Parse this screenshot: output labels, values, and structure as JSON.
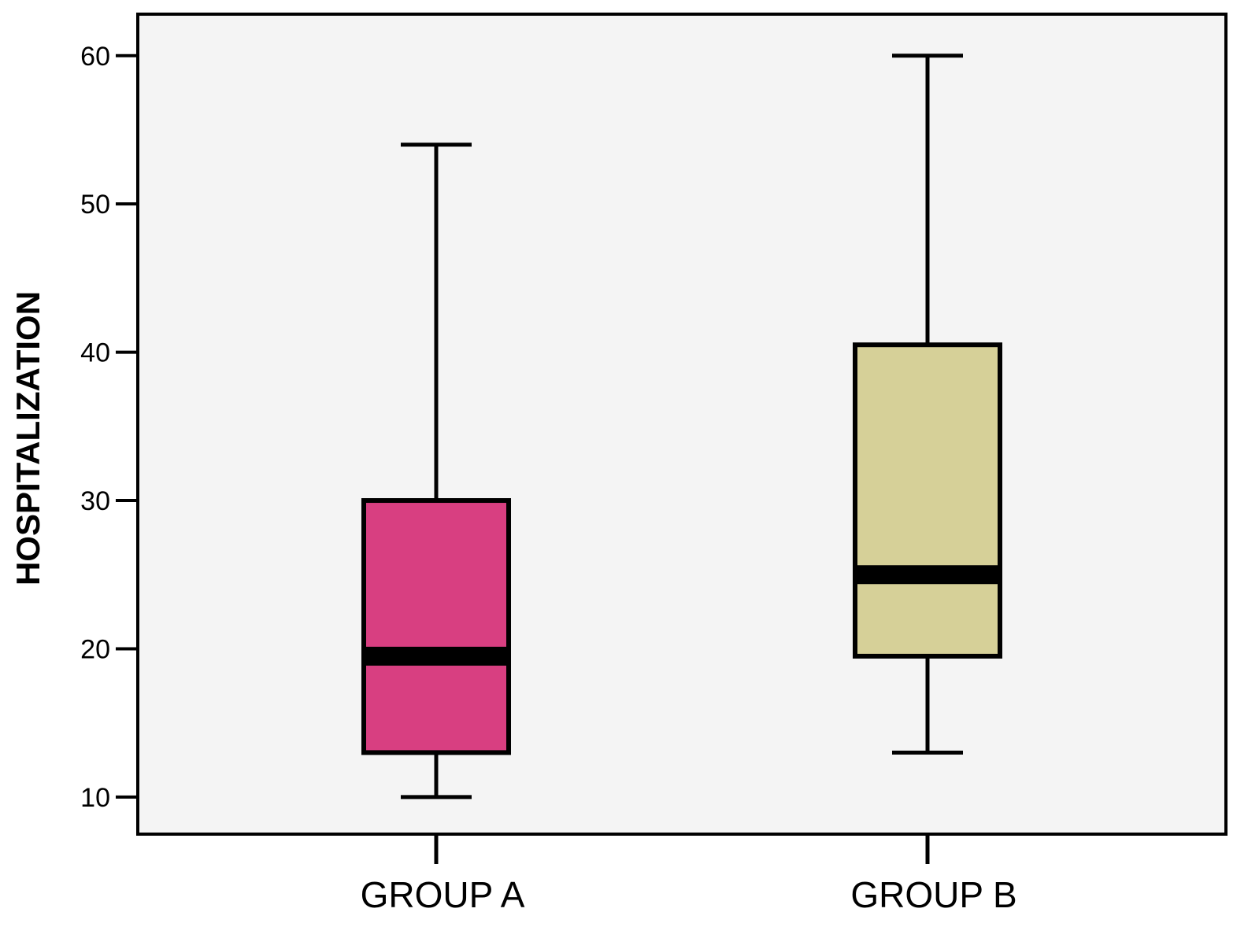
{
  "chart_data": {
    "type": "boxplot",
    "title": "",
    "xlabel": "",
    "ylabel": "HOSPITALIZATION",
    "ylim": [
      7.5,
      62.8
    ],
    "y_ticks": [
      10,
      20,
      30,
      40,
      50,
      60
    ],
    "grid": false,
    "categories": [
      "GROUP A",
      "GROUP B"
    ],
    "boxes": [
      {
        "category": "GROUP A",
        "min": 10,
        "q1": 13,
        "median": 19.5,
        "q3": 30,
        "max": 54,
        "color": "#d83f81"
      },
      {
        "category": "GROUP B",
        "min": 13,
        "q1": 19.5,
        "median": 25,
        "q3": 40.5,
        "max": 60,
        "color": "#d6d098"
      }
    ],
    "plot_background": "#f4f4f4"
  }
}
